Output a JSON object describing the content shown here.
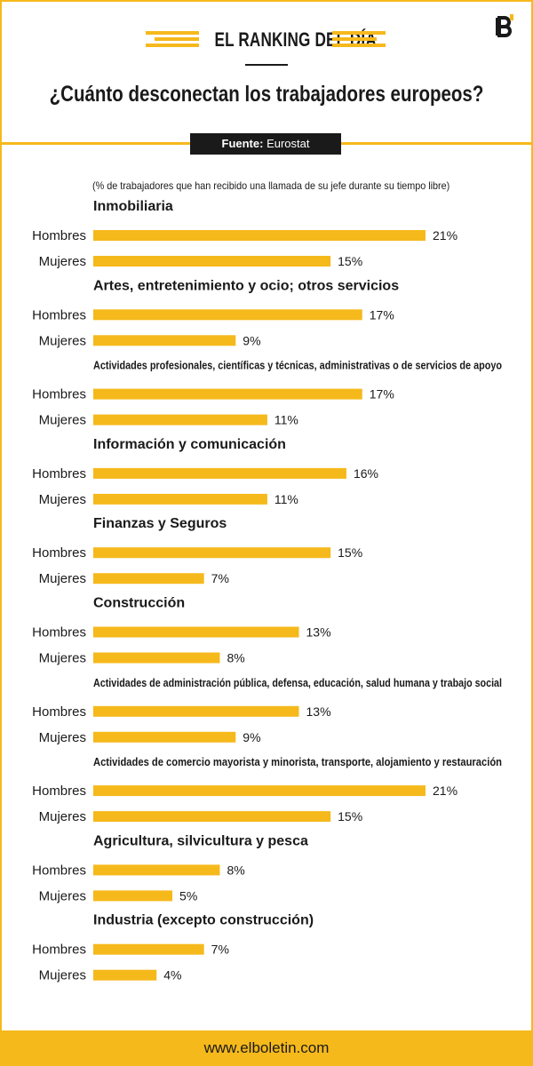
{
  "header": {
    "ranking_label": "EL RANKING DEL DÍA",
    "title": "¿Cuánto desconectan los trabajadores europeos?",
    "source_label": "Fuente:",
    "source_value": "Eurostat"
  },
  "colors": {
    "accent": "#f6b91c",
    "text": "#1a1a1a"
  },
  "footer": {
    "url": "www.elboletin.com"
  },
  "chart_data": {
    "type": "bar",
    "orientation": "horizontal",
    "subtitle": "(% de trabajadores que han recibido una llamada de su jefe durante su tiempo libre)",
    "value_suffix": "%",
    "xlim": [
      0,
      21
    ],
    "series_names": [
      "Hombres",
      "Mujeres"
    ],
    "groups": [
      {
        "name": "Inmobiliaria",
        "values": [
          21,
          15
        ]
      },
      {
        "name": "Artes, entretenimiento y ocio; otros servicios",
        "values": [
          17,
          9
        ]
      },
      {
        "name": "Actividades profesionales, científicas y técnicas, administrativas o de servicios de apoyo",
        "values": [
          17,
          11
        ]
      },
      {
        "name": "Información y comunicación",
        "values": [
          16,
          11
        ]
      },
      {
        "name": "Finanzas y Seguros",
        "values": [
          15,
          7
        ]
      },
      {
        "name": "Construcción",
        "values": [
          13,
          8
        ]
      },
      {
        "name": "Actividades de administración pública, defensa, educación, salud humana y trabajo social",
        "values": [
          13,
          9
        ]
      },
      {
        "name": "Actividades de comercio mayorista y minorista, transporte, alojamiento y restauración",
        "values": [
          21,
          15
        ]
      },
      {
        "name": "Agricultura, silvicultura y pesca",
        "values": [
          8,
          5
        ]
      },
      {
        "name": "Industria (excepto construcción)",
        "values": [
          7,
          4
        ]
      }
    ]
  }
}
